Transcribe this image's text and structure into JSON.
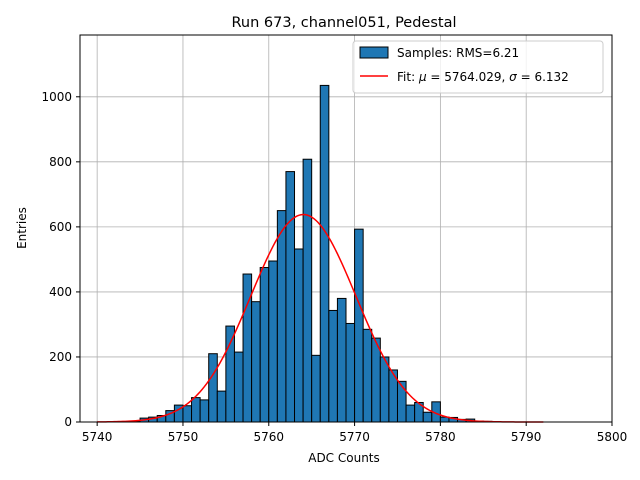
{
  "chart_data": {
    "type": "bar",
    "title": "Run 673, channel051, Pedestal",
    "xlabel": "ADC Counts",
    "ylabel": "Entries",
    "xlim": [
      5738,
      5800
    ],
    "ylim": [
      0,
      1190
    ],
    "xticks": [
      5740,
      5750,
      5760,
      5770,
      5780,
      5790,
      5800
    ],
    "yticks": [
      0,
      200,
      400,
      600,
      800,
      1000
    ],
    "grid": true,
    "legend_position": "top-right",
    "bin_width": 1,
    "bins": {
      "x_left": [
        5744,
        5745,
        5746,
        5747,
        5748,
        5749,
        5750,
        5751,
        5752,
        5753,
        5754,
        5755,
        5756,
        5757,
        5758,
        5759,
        5760,
        5761,
        5762,
        5763,
        5764,
        5765,
        5766,
        5767,
        5768,
        5769,
        5770,
        5771,
        5772,
        5773,
        5774,
        5775,
        5776,
        5777,
        5778,
        5779,
        5780,
        5781,
        5782,
        5783,
        5784,
        5785
      ],
      "counts": [
        3,
        12,
        15,
        20,
        35,
        52,
        50,
        75,
        68,
        210,
        95,
        295,
        215,
        455,
        370,
        475,
        495,
        650,
        770,
        532,
        808,
        205,
        1035,
        343,
        380,
        303,
        593,
        285,
        258,
        200,
        160,
        125,
        52,
        60,
        30,
        62,
        15,
        14,
        8,
        9,
        3,
        2
      ]
    },
    "series": [
      {
        "name": "Samples: RMS=6.21",
        "kind": "histogram",
        "color": "#1f77b4"
      },
      {
        "name": "Fit: μ = 5764.029, σ = 6.132",
        "kind": "gaussian",
        "color": "#ff0000",
        "mu": 5764.029,
        "sigma": 6.132,
        "amplitude": 638,
        "x_range": [
          5740,
          5792
        ]
      }
    ]
  },
  "legend": {
    "samples_label": "Samples: RMS=6.21",
    "fit_prefix": "Fit: ",
    "fit_mu_symbol": "μ",
    "fit_mu_value": " = 5764.029, ",
    "fit_sigma_symbol": "σ",
    "fit_sigma_value": " = 6.132"
  }
}
